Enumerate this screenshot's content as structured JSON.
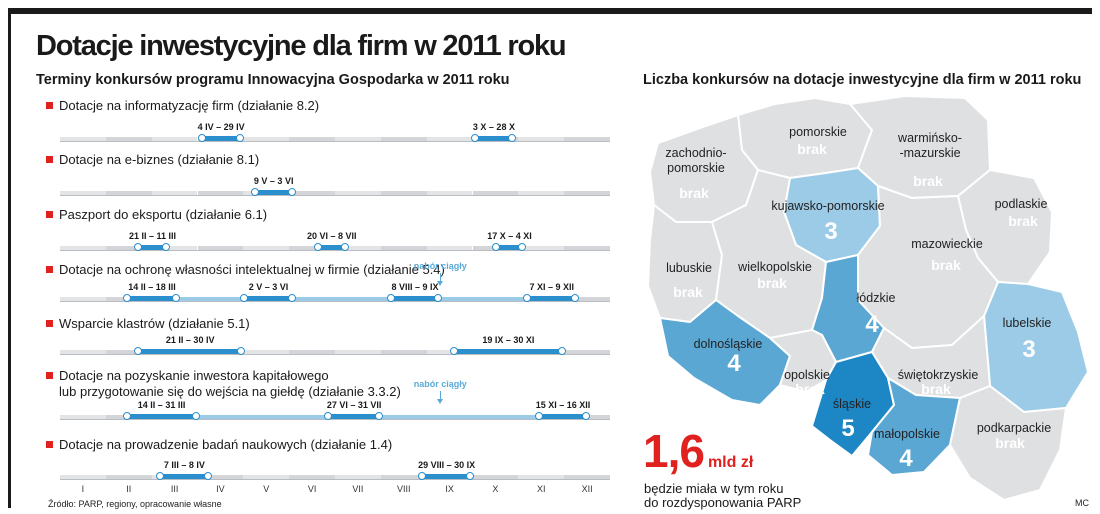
{
  "title": "Dotacje inwestycyjne dla firm w 2011 roku",
  "timeline": {
    "subtitle": "Terminy konkursów programu Innowacyjna Gospodarka w 2011 roku",
    "months": [
      "I",
      "II",
      "III",
      "IV",
      "V",
      "VI",
      "VII",
      "VIII",
      "IX",
      "X",
      "XI",
      "XII"
    ],
    "note_text": "nabór ciągły",
    "source": "Źródło: PARP, regiony, opracowanie własne"
  },
  "map": {
    "subtitle": "Liczba konkursów na dotacje inwestycyjne dla firm w 2011 roku",
    "regions": [
      {
        "name": "pomorskie",
        "value": "brak"
      },
      {
        "name": "warmińsko-\n-mazurskie",
        "value": "brak"
      },
      {
        "name": "zachodnio-\npomorskie",
        "value": "brak"
      },
      {
        "name": "kujawsko-pomorskie",
        "value": "3"
      },
      {
        "name": "podlaskie",
        "value": "brak"
      },
      {
        "name": "mazowieckie",
        "value": "brak"
      },
      {
        "name": "lubuskie",
        "value": "brak"
      },
      {
        "name": "wielkopolskie",
        "value": "brak"
      },
      {
        "name": "łódzkie",
        "value": "4"
      },
      {
        "name": "lubelskie",
        "value": "3"
      },
      {
        "name": "dolnośląskie",
        "value": "4"
      },
      {
        "name": "opolskie",
        "value": "brak"
      },
      {
        "name": "świętokrzyskie",
        "value": "brak"
      },
      {
        "name": "śląskie",
        "value": "5"
      },
      {
        "name": "małopolskie",
        "value": "4"
      },
      {
        "name": "podkarpackie",
        "value": "brak"
      }
    ],
    "colors": {
      "none": "#dfe0e2",
      "c3": "#9ccbe7",
      "c4": "#5aa7d3",
      "c5": "#1d86c4",
      "brak_text": "#ffffff",
      "label_text": "#222222"
    }
  },
  "highlight": {
    "amount": "1,6",
    "unit": "mld zł",
    "description": "będzie miała w tym roku\ndo rozdysponowania PARP"
  },
  "credit": "MC",
  "chart_data": {
    "type": "timeline",
    "x_axis": [
      "I",
      "II",
      "III",
      "IV",
      "V",
      "VI",
      "VII",
      "VIII",
      "IX",
      "X",
      "XI",
      "XII"
    ],
    "series": [
      {
        "name": "Dotacje na informatyzację firm (działanie 8.2)",
        "periods": [
          {
            "label": "4 IV – 29 IV",
            "start": [
              4,
              4
            ],
            "end": [
              4,
              29
            ]
          },
          {
            "label": "3 X – 28 X",
            "start": [
              10,
              3
            ],
            "end": [
              10,
              28
            ]
          }
        ],
        "continuous": null
      },
      {
        "name": "Dotacje na e-biznes (działanie 8.1)",
        "periods": [
          {
            "label": "9 V – 3 VI",
            "start": [
              5,
              9
            ],
            "end": [
              6,
              3
            ]
          }
        ],
        "continuous": null
      },
      {
        "name": "Paszport do eksportu (działanie 6.1)",
        "periods": [
          {
            "label": "21 II – 11 III",
            "start": [
              2,
              21
            ],
            "end": [
              3,
              11
            ]
          },
          {
            "label": "20 VI – 8 VII",
            "start": [
              6,
              20
            ],
            "end": [
              7,
              8
            ]
          },
          {
            "label": "17 X – 4 XI",
            "start": [
              10,
              17
            ],
            "end": [
              11,
              4
            ]
          }
        ],
        "continuous": null
      },
      {
        "name": "Dotacje na ochronę własności intelektualnej w firmie (działanie 5.4)",
        "periods": [
          {
            "label": "14 II – 18 III",
            "start": [
              2,
              14
            ],
            "end": [
              3,
              18
            ]
          },
          {
            "label": "2 V – 3 VI",
            "start": [
              5,
              2
            ],
            "end": [
              6,
              3
            ]
          },
          {
            "label": "8 VIII – 9 IX",
            "start": [
              8,
              8
            ],
            "end": [
              9,
              9
            ]
          },
          {
            "label": "7 XI – 9 XII",
            "start": [
              11,
              7
            ],
            "end": [
              12,
              9
            ]
          }
        ],
        "continuous": {
          "start": [
            2,
            14
          ],
          "end": [
            12,
            9
          ]
        }
      },
      {
        "name": "Wsparcie klastrów (działanie 5.1)",
        "periods": [
          {
            "label": "21 II – 30 IV",
            "start": [
              2,
              21
            ],
            "end": [
              4,
              30
            ]
          },
          {
            "label": "19 IX – 30 XI",
            "start": [
              9,
              19
            ],
            "end": [
              11,
              30
            ]
          }
        ],
        "continuous": null
      },
      {
        "name": "Dotacje na pozyskanie inwestora kapitałowego\nlub przygotowanie się do wejścia na giełdę (działanie 3.3.2)",
        "periods": [
          {
            "label": "14 II – 31 III",
            "start": [
              2,
              14
            ],
            "end": [
              3,
              31
            ]
          },
          {
            "label": "27 VI – 31 VII",
            "start": [
              6,
              27
            ],
            "end": [
              7,
              31
            ]
          },
          {
            "label": "15 XI – 16 XII",
            "start": [
              11,
              15
            ],
            "end": [
              12,
              16
            ]
          }
        ],
        "continuous": {
          "start": [
            2,
            14
          ],
          "end": [
            12,
            16
          ]
        }
      },
      {
        "name": "Dotacje na prowadzenie badań naukowych (działanie 1.4)",
        "periods": [
          {
            "label": "7 III – 8 IV",
            "start": [
              3,
              7
            ],
            "end": [
              4,
              8
            ]
          },
          {
            "label": "29 VIII – 30 IX",
            "start": [
              8,
              29
            ],
            "end": [
              9,
              30
            ]
          }
        ],
        "continuous": null
      }
    ]
  }
}
